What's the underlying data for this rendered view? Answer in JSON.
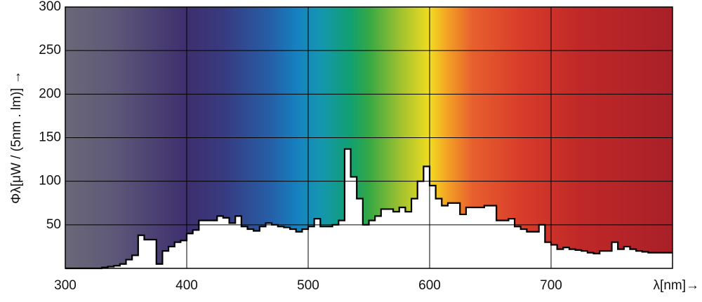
{
  "chart_data": {
    "type": "histogram",
    "ylabel": "Φλ[μW / (5nm . lm)] →",
    "xlabel": "λ[nm]→",
    "bins": [
      300,
      305,
      310,
      315,
      320,
      325,
      330,
      335,
      340,
      345,
      350,
      355,
      360,
      365,
      370,
      375,
      380,
      385,
      390,
      395,
      400,
      405,
      410,
      415,
      420,
      425,
      430,
      435,
      440,
      445,
      450,
      455,
      460,
      465,
      470,
      475,
      480,
      485,
      490,
      495,
      500,
      505,
      510,
      515,
      520,
      525,
      530,
      535,
      540,
      545,
      550,
      555,
      560,
      565,
      570,
      575,
      580,
      585,
      590,
      595,
      600,
      605,
      610,
      615,
      620,
      625,
      630,
      635,
      640,
      645,
      650,
      655,
      660,
      665,
      670,
      675,
      680,
      685,
      690,
      695,
      700,
      705,
      710,
      715,
      720,
      725,
      730,
      735,
      740,
      745,
      750,
      755,
      760,
      765,
      770,
      775,
      780,
      785,
      790,
      795,
      800
    ],
    "values": [
      0,
      0,
      0,
      0,
      0,
      0,
      1,
      2,
      3,
      5,
      10,
      15,
      38,
      33,
      33,
      5,
      20,
      25,
      30,
      32,
      40,
      44,
      55,
      55,
      55,
      60,
      58,
      52,
      60,
      48,
      45,
      43,
      48,
      52,
      50,
      48,
      47,
      45,
      42,
      45,
      48,
      57,
      48,
      48,
      50,
      55,
      137,
      105,
      80,
      50,
      55,
      60,
      68,
      68,
      65,
      70,
      65,
      80,
      100,
      117,
      95,
      80,
      72,
      75,
      75,
      62,
      70,
      70,
      70,
      72,
      72,
      55,
      55,
      57,
      48,
      45,
      42,
      42,
      50,
      30,
      27,
      22,
      24,
      22,
      21,
      20,
      18,
      17,
      20,
      20,
      30,
      22,
      25,
      22,
      20,
      19,
      18,
      18,
      18,
      18
    ],
    "xlim": [
      300,
      800
    ],
    "ylim": [
      0,
      300
    ],
    "xticks": [
      300,
      400,
      500,
      600,
      700
    ],
    "yticks": [
      50,
      100,
      150,
      200,
      250,
      300
    ],
    "grid": true,
    "color": "#000000"
  }
}
